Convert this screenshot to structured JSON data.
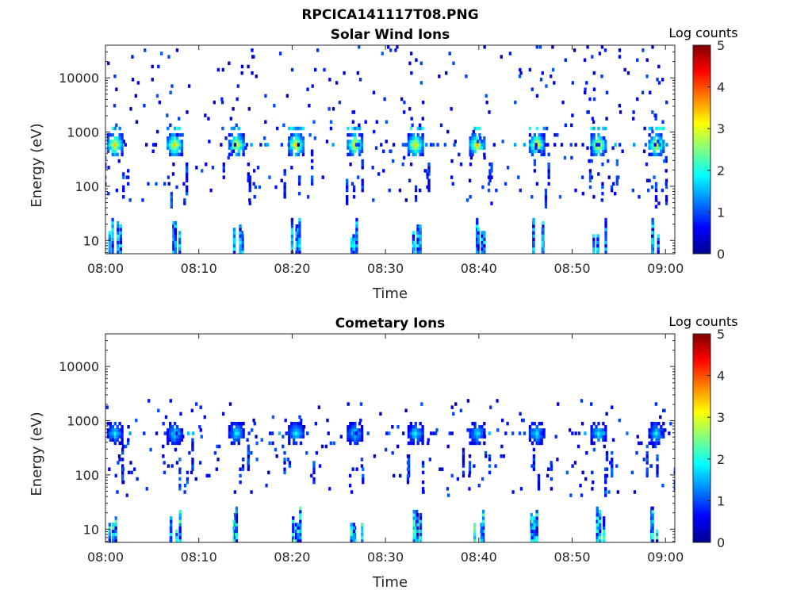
{
  "figure": {
    "filename_title": "RPCICA141117T08.PNG"
  },
  "colormap": {
    "name": "jet",
    "stops": [
      "#00008f",
      "#0000ff",
      "#0080ff",
      "#00ffff",
      "#80ff80",
      "#ffff00",
      "#ff8000",
      "#ff0000",
      "#800000"
    ]
  },
  "chart_data": [
    {
      "type": "heatmap",
      "title": "Solar Wind Ions",
      "xlabel": "Time",
      "ylabel": "Energy (eV)",
      "yscale": "log",
      "xlim": [
        "08:00",
        "09:01"
      ],
      "ylim": [
        5.7,
        40000
      ],
      "xticks": [
        "08:00",
        "08:10",
        "08:20",
        "08:30",
        "08:40",
        "08:50",
        "09:00"
      ],
      "yticks": [
        10,
        100,
        1000,
        10000
      ],
      "ytick_labels": [
        "10",
        "100",
        "1000",
        "10000"
      ],
      "colorbar": {
        "label": "Log counts",
        "range": [
          0,
          5
        ],
        "ticks": [
          "0",
          "1",
          "2",
          "3",
          "4",
          "5"
        ]
      },
      "grid": false,
      "bursts_minutes": [
        0.9,
        7.3,
        13.9,
        20.3,
        26.6,
        33.1,
        39.7,
        46.1,
        52.7,
        58.9
      ],
      "peak_energy_eV": 600,
      "peak_log_counts": 3.3
    },
    {
      "type": "heatmap",
      "title": "Cometary Ions",
      "xlabel": "Time",
      "ylabel": "Energy (eV)",
      "yscale": "log",
      "xlim": [
        "08:00",
        "09:01"
      ],
      "ylim": [
        5.7,
        40000
      ],
      "xticks": [
        "08:00",
        "08:10",
        "08:20",
        "08:30",
        "08:40",
        "08:50",
        "09:00"
      ],
      "yticks": [
        10,
        100,
        1000,
        10000
      ],
      "ytick_labels": [
        "10",
        "100",
        "1000",
        "10000"
      ],
      "colorbar": {
        "label": "Log counts",
        "range": [
          0,
          5
        ],
        "ticks": [
          "0",
          "1",
          "2",
          "3",
          "4",
          "5"
        ]
      },
      "grid": false,
      "bursts_minutes": [
        0.9,
        7.3,
        13.9,
        20.3,
        26.6,
        33.1,
        39.7,
        46.1,
        52.7,
        58.9
      ],
      "peak_energy_eV": 600,
      "peak_log_counts": 1.9
    }
  ]
}
